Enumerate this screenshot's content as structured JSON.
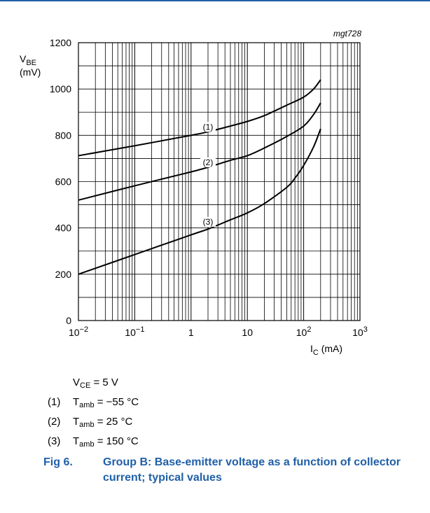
{
  "figure_id": "mgt728",
  "chart_data": {
    "type": "line",
    "title": "",
    "x_scale": "log",
    "xlim": [
      0.01,
      1000
    ],
    "ylim": [
      0,
      1200
    ],
    "ylabel": {
      "main": "V",
      "sub": "BE",
      "unit": "(mV)"
    },
    "xlabel": {
      "main": "I",
      "sub": "C",
      "unit": "(mA)"
    },
    "x_ticks": [
      {
        "value": 0.01,
        "base": "10",
        "exp": "−2"
      },
      {
        "value": 0.1,
        "base": "10",
        "exp": "−1"
      },
      {
        "value": 1,
        "base": "1",
        "exp": ""
      },
      {
        "value": 10,
        "base": "10",
        "exp": ""
      },
      {
        "value": 100,
        "base": "10",
        "exp": "2"
      },
      {
        "value": 1000,
        "base": "10",
        "exp": "3"
      }
    ],
    "y_ticks": [
      0,
      200,
      400,
      600,
      800,
      1000,
      1200
    ],
    "grid": true,
    "series": [
      {
        "name": "(1)",
        "x": [
          0.01,
          0.1,
          1,
          2,
          5,
          10,
          20,
          50,
          100,
          150,
          200
        ],
        "y": [
          712,
          755,
          800,
          815,
          840,
          860,
          885,
          930,
          965,
          1000,
          1040
        ]
      },
      {
        "name": "(2)",
        "x": [
          0.01,
          0.1,
          1,
          2,
          5,
          10,
          20,
          50,
          100,
          150,
          200
        ],
        "y": [
          520,
          582,
          642,
          662,
          692,
          712,
          745,
          795,
          840,
          890,
          940
        ]
      },
      {
        "name": "(3)",
        "x": [
          0.01,
          0.1,
          1,
          2,
          5,
          10,
          20,
          50,
          70,
          100,
          150,
          200
        ],
        "y": [
          200,
          285,
          370,
          395,
          435,
          465,
          505,
          575,
          615,
          670,
          750,
          828
        ]
      }
    ],
    "series_label_positions": [
      {
        "x": 2,
        "y": 815
      },
      {
        "x": 2,
        "y": 662
      },
      {
        "x": 2,
        "y": 405
      }
    ],
    "line_color": "#000000",
    "grid_color": "#000000"
  },
  "notes": {
    "condition": {
      "main": "V",
      "sub": "CE",
      "rest": " = 5 V"
    },
    "items": [
      {
        "num": "(1)",
        "main": "T",
        "sub": "amb",
        "rest": " = −55 °C"
      },
      {
        "num": "(2)",
        "main": "T",
        "sub": "amb",
        "rest": " = 25 °C"
      },
      {
        "num": "(3)",
        "main": "T",
        "sub": "amb",
        "rest": " = 150 °C"
      }
    ]
  },
  "caption": {
    "number": "Fig 6.",
    "text": "Group B: Base-emitter voltage as a function of collector current; typical values"
  },
  "colors": {
    "caption": "#1f5fa8",
    "top_rule": "#1f5fa8",
    "ink": "#000000"
  }
}
